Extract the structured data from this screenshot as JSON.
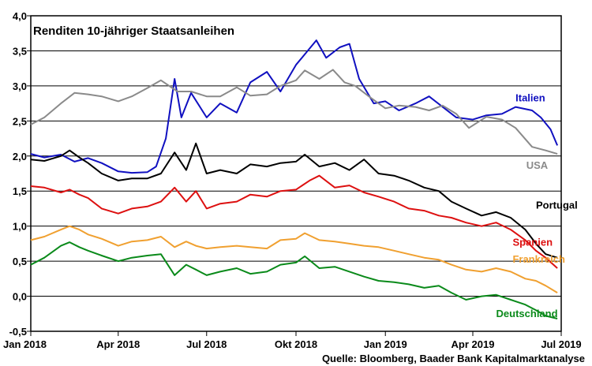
{
  "chart_data": {
    "type": "line",
    "title": "Renditen 10-jähriger Staatsanleihen",
    "source": "Quelle: Bloomberg, Baader Bank Kapitalmarktanalyse",
    "xlabel": "",
    "ylabel": "",
    "ylim": [
      -0.5,
      4.0
    ],
    "y_ticks": [
      "4,0",
      "3,5",
      "3,0",
      "2,5",
      "2,0",
      "1,5",
      "1,0",
      "0,5",
      "0,0",
      "-0,5"
    ],
    "y_tick_values": [
      4.0,
      3.5,
      3.0,
      2.5,
      2.0,
      1.5,
      1.0,
      0.5,
      0.0,
      -0.5
    ],
    "x_ticks": [
      "Jan 2018",
      "Apr 2018",
      "Jul 2018",
      "Okt 2018",
      "Jan 2019",
      "Apr 2019",
      "Jul 2019"
    ],
    "x_tick_dates": [
      "2018-01-01",
      "2018-04-01",
      "2018-07-01",
      "2018-10-01",
      "2019-01-01",
      "2019-04-01",
      "2019-07-01"
    ],
    "xlim": [
      "2018-01-01",
      "2019-07-01"
    ],
    "grid": "horizontal",
    "series": [
      {
        "name": "Italien",
        "color": "#1010c0",
        "points": [
          [
            "2018-01-01",
            2.03
          ],
          [
            "2018-01-15",
            1.98
          ],
          [
            "2018-02-01",
            2.02
          ],
          [
            "2018-02-15",
            1.92
          ],
          [
            "2018-03-01",
            1.97
          ],
          [
            "2018-03-15",
            1.9
          ],
          [
            "2018-04-01",
            1.78
          ],
          [
            "2018-04-15",
            1.76
          ],
          [
            "2018-05-01",
            1.77
          ],
          [
            "2018-05-10",
            1.85
          ],
          [
            "2018-05-20",
            2.25
          ],
          [
            "2018-05-29",
            3.1
          ],
          [
            "2018-06-05",
            2.55
          ],
          [
            "2018-06-15",
            2.9
          ],
          [
            "2018-07-01",
            2.55
          ],
          [
            "2018-07-15",
            2.75
          ],
          [
            "2018-08-01",
            2.62
          ],
          [
            "2018-08-15",
            3.05
          ],
          [
            "2018-09-01",
            3.2
          ],
          [
            "2018-09-15",
            2.92
          ],
          [
            "2018-10-01",
            3.3
          ],
          [
            "2018-10-10",
            3.45
          ],
          [
            "2018-10-22",
            3.65
          ],
          [
            "2018-11-01",
            3.4
          ],
          [
            "2018-11-15",
            3.55
          ],
          [
            "2018-11-25",
            3.6
          ],
          [
            "2018-12-05",
            3.1
          ],
          [
            "2018-12-20",
            2.75
          ],
          [
            "2019-01-01",
            2.78
          ],
          [
            "2019-01-15",
            2.65
          ],
          [
            "2019-02-01",
            2.75
          ],
          [
            "2019-02-15",
            2.85
          ],
          [
            "2019-03-01",
            2.7
          ],
          [
            "2019-03-15",
            2.55
          ],
          [
            "2019-04-01",
            2.52
          ],
          [
            "2019-04-15",
            2.58
          ],
          [
            "2019-05-01",
            2.6
          ],
          [
            "2019-05-15",
            2.7
          ],
          [
            "2019-06-01",
            2.65
          ],
          [
            "2019-06-10",
            2.55
          ],
          [
            "2019-06-20",
            2.38
          ],
          [
            "2019-06-27",
            2.15
          ]
        ],
        "label_x": "2019-05-15",
        "label_y": 2.78
      },
      {
        "name": "USA",
        "color": "#8a8a8a",
        "points": [
          [
            "2018-01-01",
            2.45
          ],
          [
            "2018-01-15",
            2.55
          ],
          [
            "2018-02-01",
            2.75
          ],
          [
            "2018-02-15",
            2.9
          ],
          [
            "2018-03-01",
            2.88
          ],
          [
            "2018-03-15",
            2.85
          ],
          [
            "2018-04-01",
            2.78
          ],
          [
            "2018-04-15",
            2.85
          ],
          [
            "2018-05-01",
            2.97
          ],
          [
            "2018-05-15",
            3.08
          ],
          [
            "2018-06-01",
            2.92
          ],
          [
            "2018-06-15",
            2.92
          ],
          [
            "2018-07-01",
            2.85
          ],
          [
            "2018-07-15",
            2.85
          ],
          [
            "2018-08-01",
            2.98
          ],
          [
            "2018-08-15",
            2.86
          ],
          [
            "2018-09-01",
            2.88
          ],
          [
            "2018-09-15",
            3.0
          ],
          [
            "2018-10-01",
            3.08
          ],
          [
            "2018-10-10",
            3.22
          ],
          [
            "2018-10-25",
            3.1
          ],
          [
            "2018-11-08",
            3.23
          ],
          [
            "2018-11-20",
            3.05
          ],
          [
            "2018-12-01",
            3.0
          ],
          [
            "2018-12-15",
            2.85
          ],
          [
            "2019-01-01",
            2.68
          ],
          [
            "2019-01-15",
            2.72
          ],
          [
            "2019-02-01",
            2.7
          ],
          [
            "2019-02-15",
            2.65
          ],
          [
            "2019-03-01",
            2.72
          ],
          [
            "2019-03-15",
            2.6
          ],
          [
            "2019-03-28",
            2.4
          ],
          [
            "2019-04-15",
            2.56
          ],
          [
            "2019-05-01",
            2.52
          ],
          [
            "2019-05-15",
            2.4
          ],
          [
            "2019-06-01",
            2.13
          ],
          [
            "2019-06-15",
            2.08
          ],
          [
            "2019-06-27",
            2.03
          ]
        ],
        "label_x": "2019-05-26",
        "label_y": 1.82
      },
      {
        "name": "Portugal",
        "color": "#000000",
        "points": [
          [
            "2018-01-01",
            1.95
          ],
          [
            "2018-01-15",
            1.93
          ],
          [
            "2018-02-01",
            2.0
          ],
          [
            "2018-02-10",
            2.08
          ],
          [
            "2018-02-20",
            1.98
          ],
          [
            "2018-03-01",
            1.9
          ],
          [
            "2018-03-15",
            1.75
          ],
          [
            "2018-04-01",
            1.65
          ],
          [
            "2018-04-15",
            1.68
          ],
          [
            "2018-05-01",
            1.68
          ],
          [
            "2018-05-15",
            1.75
          ],
          [
            "2018-05-29",
            2.05
          ],
          [
            "2018-06-10",
            1.8
          ],
          [
            "2018-06-20",
            2.18
          ],
          [
            "2018-07-01",
            1.75
          ],
          [
            "2018-07-15",
            1.8
          ],
          [
            "2018-08-01",
            1.75
          ],
          [
            "2018-08-15",
            1.88
          ],
          [
            "2018-09-01",
            1.85
          ],
          [
            "2018-09-15",
            1.9
          ],
          [
            "2018-10-01",
            1.92
          ],
          [
            "2018-10-10",
            2.02
          ],
          [
            "2018-10-25",
            1.85
          ],
          [
            "2018-11-10",
            1.9
          ],
          [
            "2018-11-25",
            1.8
          ],
          [
            "2018-12-10",
            1.95
          ],
          [
            "2018-12-25",
            1.75
          ],
          [
            "2019-01-10",
            1.72
          ],
          [
            "2019-01-25",
            1.65
          ],
          [
            "2019-02-10",
            1.55
          ],
          [
            "2019-02-25",
            1.5
          ],
          [
            "2019-03-10",
            1.35
          ],
          [
            "2019-03-25",
            1.25
          ],
          [
            "2019-04-10",
            1.15
          ],
          [
            "2019-04-25",
            1.2
          ],
          [
            "2019-05-10",
            1.12
          ],
          [
            "2019-05-25",
            0.95
          ],
          [
            "2019-06-05",
            0.75
          ],
          [
            "2019-06-15",
            0.6
          ],
          [
            "2019-06-27",
            0.55
          ]
        ],
        "label_x": "2019-06-05",
        "label_y": 1.25
      },
      {
        "name": "Spanien",
        "color": "#dd1010",
        "points": [
          [
            "2018-01-01",
            1.57
          ],
          [
            "2018-01-15",
            1.55
          ],
          [
            "2018-02-01",
            1.48
          ],
          [
            "2018-02-10",
            1.52
          ],
          [
            "2018-02-20",
            1.45
          ],
          [
            "2018-03-01",
            1.4
          ],
          [
            "2018-03-15",
            1.25
          ],
          [
            "2018-04-01",
            1.18
          ],
          [
            "2018-04-15",
            1.25
          ],
          [
            "2018-05-01",
            1.28
          ],
          [
            "2018-05-15",
            1.35
          ],
          [
            "2018-05-29",
            1.55
          ],
          [
            "2018-06-10",
            1.35
          ],
          [
            "2018-06-20",
            1.5
          ],
          [
            "2018-07-01",
            1.25
          ],
          [
            "2018-07-15",
            1.32
          ],
          [
            "2018-08-01",
            1.35
          ],
          [
            "2018-08-15",
            1.45
          ],
          [
            "2018-09-01",
            1.42
          ],
          [
            "2018-09-15",
            1.5
          ],
          [
            "2018-10-01",
            1.52
          ],
          [
            "2018-10-15",
            1.65
          ],
          [
            "2018-10-25",
            1.72
          ],
          [
            "2018-11-10",
            1.55
          ],
          [
            "2018-11-25",
            1.58
          ],
          [
            "2018-12-10",
            1.48
          ],
          [
            "2018-12-25",
            1.42
          ],
          [
            "2019-01-10",
            1.35
          ],
          [
            "2019-01-25",
            1.25
          ],
          [
            "2019-02-10",
            1.22
          ],
          [
            "2019-02-25",
            1.15
          ],
          [
            "2019-03-10",
            1.12
          ],
          [
            "2019-03-25",
            1.05
          ],
          [
            "2019-04-10",
            1.0
          ],
          [
            "2019-04-25",
            1.05
          ],
          [
            "2019-05-10",
            0.95
          ],
          [
            "2019-05-25",
            0.8
          ],
          [
            "2019-06-05",
            0.65
          ],
          [
            "2019-06-15",
            0.55
          ],
          [
            "2019-06-27",
            0.4
          ]
        ],
        "label_x": "2019-05-12",
        "label_y": 0.72
      },
      {
        "name": "Frankreich",
        "color": "#f0a030",
        "points": [
          [
            "2018-01-01",
            0.8
          ],
          [
            "2018-01-15",
            0.85
          ],
          [
            "2018-02-01",
            0.95
          ],
          [
            "2018-02-10",
            1.0
          ],
          [
            "2018-02-20",
            0.95
          ],
          [
            "2018-03-01",
            0.88
          ],
          [
            "2018-03-15",
            0.82
          ],
          [
            "2018-04-01",
            0.72
          ],
          [
            "2018-04-15",
            0.78
          ],
          [
            "2018-05-01",
            0.8
          ],
          [
            "2018-05-15",
            0.85
          ],
          [
            "2018-05-29",
            0.7
          ],
          [
            "2018-06-10",
            0.78
          ],
          [
            "2018-06-20",
            0.72
          ],
          [
            "2018-07-01",
            0.68
          ],
          [
            "2018-07-15",
            0.7
          ],
          [
            "2018-08-01",
            0.72
          ],
          [
            "2018-08-15",
            0.7
          ],
          [
            "2018-09-01",
            0.68
          ],
          [
            "2018-09-15",
            0.8
          ],
          [
            "2018-10-01",
            0.82
          ],
          [
            "2018-10-10",
            0.9
          ],
          [
            "2018-10-25",
            0.8
          ],
          [
            "2018-11-10",
            0.78
          ],
          [
            "2018-11-25",
            0.75
          ],
          [
            "2018-12-10",
            0.72
          ],
          [
            "2018-12-25",
            0.7
          ],
          [
            "2019-01-10",
            0.65
          ],
          [
            "2019-01-25",
            0.6
          ],
          [
            "2019-02-10",
            0.55
          ],
          [
            "2019-02-25",
            0.52
          ],
          [
            "2019-03-10",
            0.45
          ],
          [
            "2019-03-25",
            0.38
          ],
          [
            "2019-04-10",
            0.35
          ],
          [
            "2019-04-25",
            0.4
          ],
          [
            "2019-05-10",
            0.35
          ],
          [
            "2019-05-25",
            0.25
          ],
          [
            "2019-06-05",
            0.22
          ],
          [
            "2019-06-15",
            0.15
          ],
          [
            "2019-06-27",
            0.05
          ]
        ],
        "label_x": "2019-05-12",
        "label_y": 0.48
      },
      {
        "name": "Deutschland",
        "color": "#0a8a1a",
        "points": [
          [
            "2018-01-01",
            0.45
          ],
          [
            "2018-01-15",
            0.55
          ],
          [
            "2018-02-01",
            0.72
          ],
          [
            "2018-02-10",
            0.77
          ],
          [
            "2018-02-20",
            0.7
          ],
          [
            "2018-03-01",
            0.65
          ],
          [
            "2018-03-15",
            0.58
          ],
          [
            "2018-04-01",
            0.5
          ],
          [
            "2018-04-15",
            0.55
          ],
          [
            "2018-05-01",
            0.58
          ],
          [
            "2018-05-15",
            0.6
          ],
          [
            "2018-05-29",
            0.3
          ],
          [
            "2018-06-10",
            0.45
          ],
          [
            "2018-06-20",
            0.38
          ],
          [
            "2018-07-01",
            0.3
          ],
          [
            "2018-07-15",
            0.35
          ],
          [
            "2018-08-01",
            0.4
          ],
          [
            "2018-08-15",
            0.32
          ],
          [
            "2018-09-01",
            0.35
          ],
          [
            "2018-09-15",
            0.45
          ],
          [
            "2018-10-01",
            0.48
          ],
          [
            "2018-10-10",
            0.57
          ],
          [
            "2018-10-25",
            0.4
          ],
          [
            "2018-11-10",
            0.42
          ],
          [
            "2018-11-25",
            0.35
          ],
          [
            "2018-12-10",
            0.28
          ],
          [
            "2018-12-25",
            0.22
          ],
          [
            "2019-01-10",
            0.2
          ],
          [
            "2019-01-25",
            0.17
          ],
          [
            "2019-02-10",
            0.12
          ],
          [
            "2019-02-25",
            0.15
          ],
          [
            "2019-03-10",
            0.05
          ],
          [
            "2019-03-25",
            -0.05
          ],
          [
            "2019-04-10",
            0.0
          ],
          [
            "2019-04-25",
            0.02
          ],
          [
            "2019-05-10",
            -0.05
          ],
          [
            "2019-05-25",
            -0.12
          ],
          [
            "2019-06-05",
            -0.2
          ],
          [
            "2019-06-15",
            -0.28
          ],
          [
            "2019-06-27",
            -0.32
          ]
        ],
        "label_x": "2019-04-25",
        "label_y": -0.3
      }
    ]
  }
}
